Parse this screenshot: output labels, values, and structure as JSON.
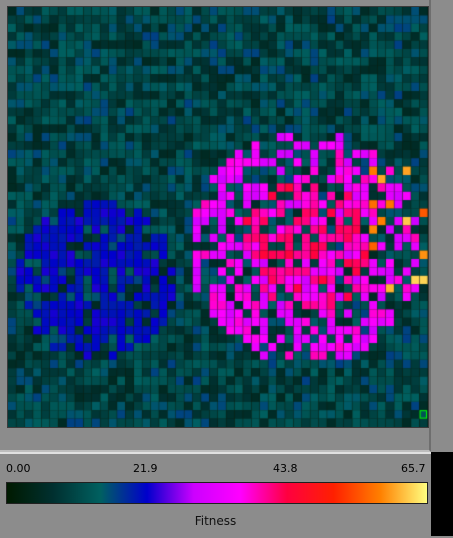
{
  "legend": {
    "ticks": [
      "0.00",
      "21.9",
      "43.8",
      "65.7"
    ],
    "label": "Fitness",
    "colormap": [
      "#001a00",
      "#003030",
      "#006060",
      "#0000cc",
      "#cc00ff",
      "#ff00ff",
      "#ff0040",
      "#ff2000",
      "#ff8000",
      "#ffff80"
    ]
  },
  "grid": {
    "cols": 50,
    "rows": 50,
    "fitness_min": 0.0,
    "fitness_max": 65.7
  }
}
